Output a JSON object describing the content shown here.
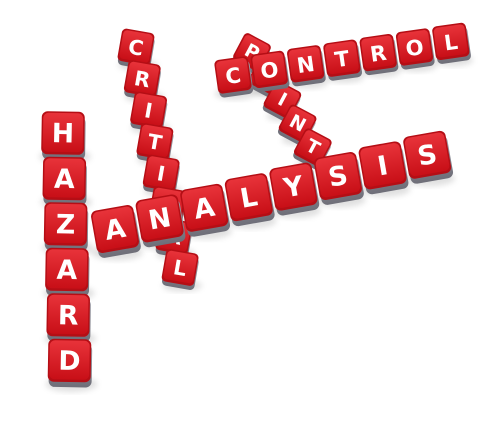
{
  "scene": {
    "description_words": [
      "HAZARD",
      "ANALYSIS",
      "CRITICAL",
      "CONTROL",
      "POINT"
    ],
    "colors": {
      "background": "#ffffff",
      "tile_face": "#d3141c",
      "tile_face_highlight": "#e8333a",
      "tile_side": "#8f8f98",
      "tile_side_dark": "#6e6e78",
      "letter": "#ffffff"
    }
  },
  "words": {
    "hazard": {
      "letters": [
        "H",
        "A",
        "Z",
        "A",
        "R",
        "D"
      ]
    },
    "analysis": {
      "letters": [
        "A",
        "N",
        "A",
        "L",
        "Y",
        "S",
        "I",
        "S"
      ]
    },
    "critical": {
      "letters": [
        "C",
        "R",
        "I",
        "T",
        "I",
        "C",
        "A",
        "L"
      ]
    },
    "control": {
      "letters": [
        "C",
        "O",
        "N",
        "T",
        "R",
        "O",
        "L"
      ]
    },
    "point": {
      "letters": [
        "P",
        "O",
        "I",
        "N",
        "T"
      ]
    }
  }
}
